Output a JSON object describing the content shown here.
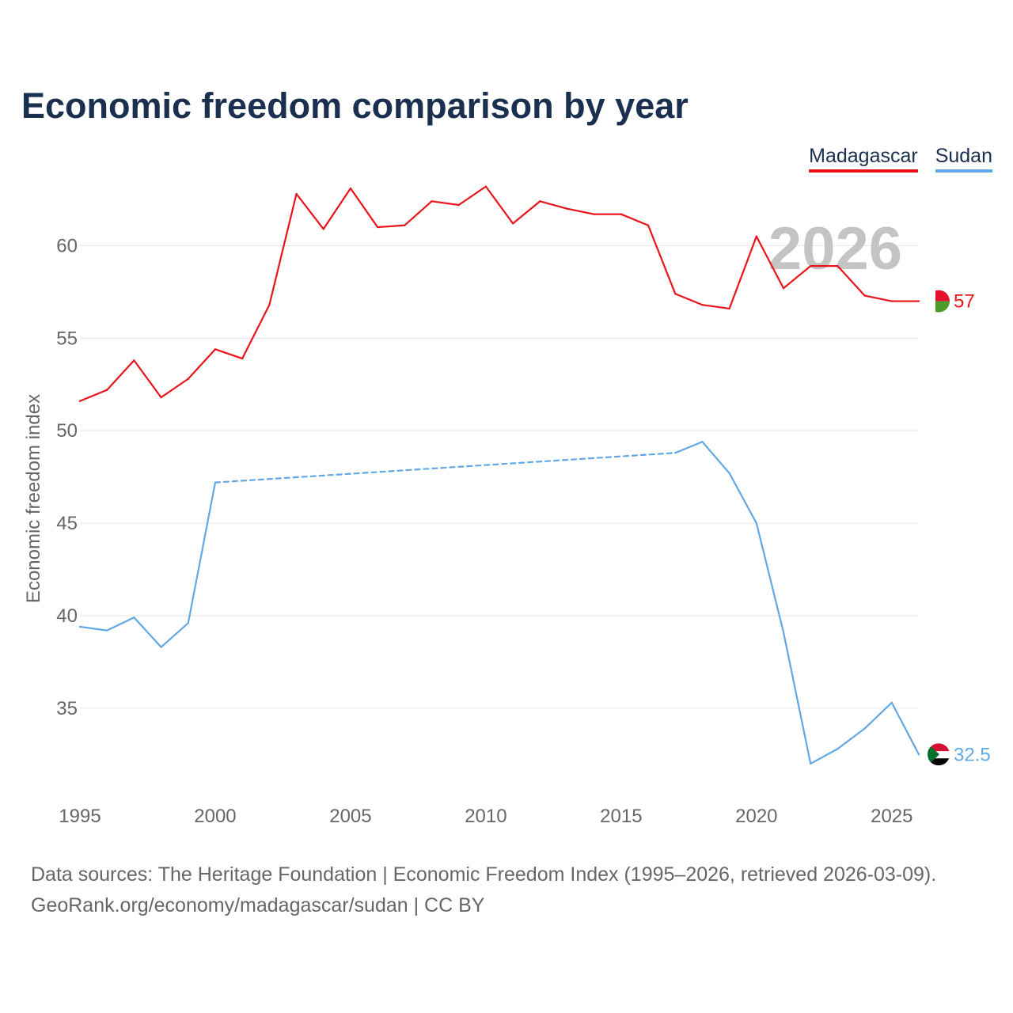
{
  "title": "Economic freedom comparison by year",
  "legend": [
    {
      "label": "Madagascar",
      "color": "#e8141a"
    },
    {
      "label": "Sudan",
      "color": "#62a8e5"
    }
  ],
  "footer": {
    "line1": "Data sources: The Heritage Foundation | Economic Freedom Index (1995–2026, retrieved 2026-03-09).",
    "line2": "GeoRank.org/economy/madagascar/sudan | CC BY"
  },
  "chart_data": {
    "type": "line",
    "title": "Economic freedom comparison by year",
    "xlabel": "",
    "ylabel": "Economic freedom index",
    "current_year": "2026",
    "xlim": [
      1995,
      2026
    ],
    "ylim": [
      30.5,
      62.5
    ],
    "x_ticks": [
      1995,
      2000,
      2005,
      2010,
      2015,
      2020,
      2025
    ],
    "y_ticks": [
      35,
      40,
      45,
      50,
      55,
      60
    ],
    "grid": true,
    "series": [
      {
        "name": "Madagascar",
        "color": "#e8141a",
        "end_label": "57",
        "flag_icon": "madagascar-flag-icon",
        "points": [
          [
            1995,
            51.6
          ],
          [
            1996,
            52.2
          ],
          [
            1997,
            53.8
          ],
          [
            1998,
            51.8
          ],
          [
            1999,
            52.8
          ],
          [
            2000,
            54.4
          ],
          [
            2001,
            53.9
          ],
          [
            2002,
            56.8
          ],
          [
            2003,
            62.8
          ],
          [
            2004,
            60.9
          ],
          [
            2005,
            63.1
          ],
          [
            2006,
            61.0
          ],
          [
            2007,
            61.1
          ],
          [
            2008,
            62.4
          ],
          [
            2009,
            62.2
          ],
          [
            2010,
            63.2
          ],
          [
            2011,
            61.2
          ],
          [
            2012,
            62.4
          ],
          [
            2013,
            62.0
          ],
          [
            2014,
            61.7
          ],
          [
            2015,
            61.7
          ],
          [
            2016,
            61.1
          ],
          [
            2017,
            57.4
          ],
          [
            2018,
            56.8
          ],
          [
            2019,
            56.6
          ],
          [
            2020,
            60.5
          ],
          [
            2021,
            57.7
          ],
          [
            2022,
            58.9
          ],
          [
            2023,
            58.9
          ],
          [
            2024,
            57.3
          ],
          [
            2025,
            57.0
          ],
          [
            2026,
            57.0
          ]
        ]
      },
      {
        "name": "Sudan",
        "color": "#62a8e5",
        "end_label": "32.5",
        "flag_icon": "sudan-flag-icon",
        "points": [
          [
            1995,
            39.4
          ],
          [
            1996,
            39.2
          ],
          [
            1997,
            39.9
          ],
          [
            1998,
            38.3
          ],
          [
            1999,
            39.6
          ],
          [
            2000,
            47.2
          ],
          [
            2017,
            48.8
          ],
          [
            2018,
            49.4
          ],
          [
            2019,
            47.7
          ],
          [
            2020,
            45.0
          ],
          [
            2021,
            39.1
          ],
          [
            2022,
            32.0
          ],
          [
            2023,
            32.8
          ],
          [
            2024,
            33.9
          ],
          [
            2025,
            35.3
          ],
          [
            2026,
            32.5
          ]
        ],
        "dashed_segments": [
          [
            2000,
            2017
          ]
        ]
      }
    ]
  }
}
